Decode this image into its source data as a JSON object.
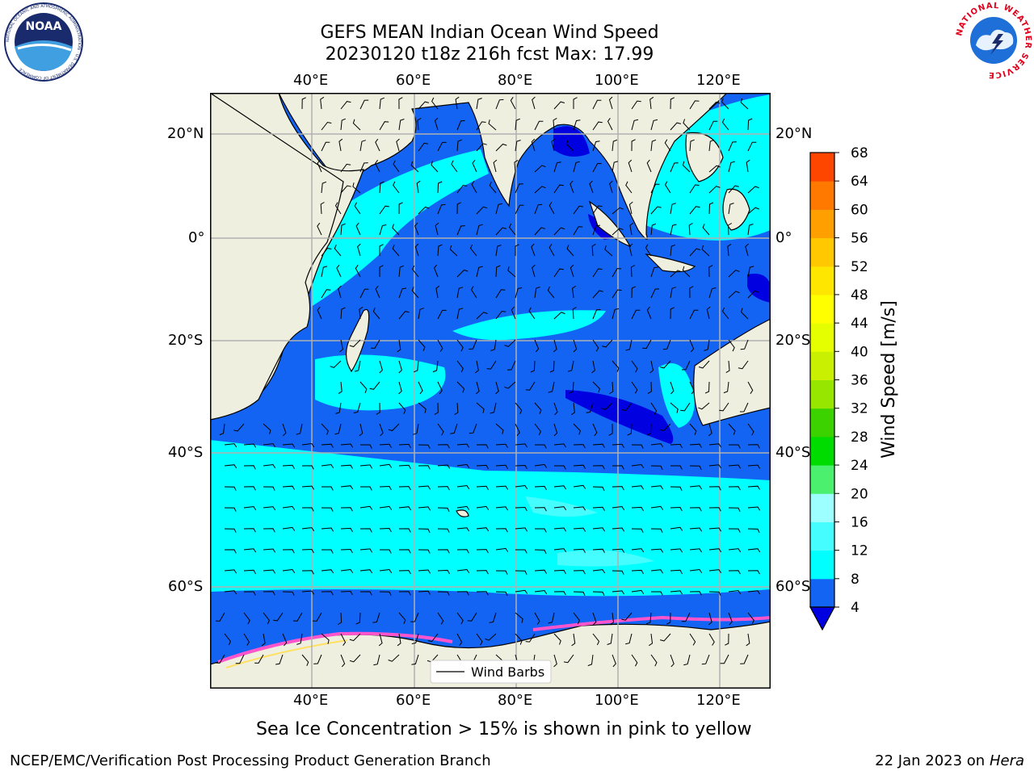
{
  "title": {
    "line1": "GEFS MEAN Indian Ocean Wind Speed",
    "line2": "20230120 t18z 216h fcst   Max: 17.99"
  },
  "logos": {
    "left": "NOAA",
    "left_ring": "NATIONAL OCEANIC AND ATMOSPHERIC ADMINISTRATION · U.S. DEPARTMENT OF COMMERCE",
    "right_ring": "NATIONAL WEATHER SERVICE"
  },
  "map": {
    "lon_labels": [
      "40°E",
      "60°E",
      "80°E",
      "100°E",
      "120°E"
    ],
    "lat_labels": [
      "20°N",
      "0°",
      "20°S",
      "40°S",
      "60°S"
    ],
    "legend_label": "Wind Barbs",
    "colors": {
      "land": "#efefdf",
      "ocean_4_8": "#1464f4",
      "ocean_below_4": "#0000e0",
      "ocean_8_12": "#00ffff",
      "ocean_12_16": "#45fcff"
    }
  },
  "colorbar": {
    "label": "Wind Speed [m/s]",
    "ticks": [
      "4",
      "8",
      "12",
      "16",
      "20",
      "24",
      "28",
      "32",
      "36",
      "40",
      "44",
      "48",
      "52",
      "56",
      "60",
      "64",
      "68"
    ],
    "colors": [
      "#1464f4",
      "#00ffff",
      "#45fcff",
      "#9dffff",
      "#4bf06e",
      "#00dc00",
      "#3cd200",
      "#96e600",
      "#c8f000",
      "#e6ff00",
      "#ffff00",
      "#ffe600",
      "#ffc800",
      "#ffa000",
      "#ff7800",
      "#ff4600",
      "#ff0000"
    ],
    "under_color": "#0000e0"
  },
  "caption": "Sea Ice Concentration > 15% is shown in pink to yellow",
  "footer": {
    "left": "NCEP/EMC/Verification Post Processing Product Generation Branch",
    "right_prefix": "22 Jan 2023 on ",
    "right_host": "Hera"
  }
}
